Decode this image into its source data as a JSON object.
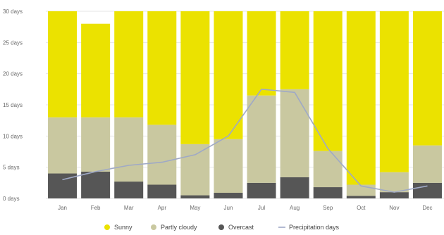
{
  "chart_data": {
    "type": "bar",
    "stacked": true,
    "categories": [
      "Jan",
      "Feb",
      "Mar",
      "Apr",
      "May",
      "Jun",
      "Jul",
      "Aug",
      "Sep",
      "Oct",
      "Nov",
      "Dec"
    ],
    "series": [
      {
        "name": "Overcast",
        "color": "#565656",
        "values": [
          4,
          4.3,
          2.7,
          2.2,
          0.5,
          0.9,
          2.5,
          3.4,
          1.8,
          0.4,
          1,
          2.5
        ]
      },
      {
        "name": "Partly cloudy",
        "color": "#c9c8a0",
        "values": [
          9,
          8.7,
          10.3,
          9.6,
          8.2,
          8.6,
          14,
          14.1,
          5.8,
          1.8,
          3.2,
          6
        ]
      },
      {
        "name": "Sunny",
        "color": "#ebe200",
        "values": [
          17,
          15,
          17,
          18.2,
          21.3,
          20.5,
          13.5,
          12.5,
          22.4,
          27.8,
          25.8,
          21.5
        ]
      }
    ],
    "line_series": {
      "name": "Precipitation days",
      "color": "#9fa9c6",
      "values": [
        3,
        4.3,
        5.3,
        5.8,
        7,
        10,
        17.5,
        17,
        8,
        2,
        1,
        2
      ]
    },
    "ylim": [
      0,
      30
    ],
    "yticks": [
      0,
      5,
      10,
      15,
      20,
      25,
      30
    ],
    "ytick_labels": [
      "0 days",
      "5 days",
      "10 days",
      "15 days",
      "20 days",
      "25 days",
      "30 days"
    ],
    "grid": true,
    "legend_position": "bottom",
    "title": "",
    "xlabel": "",
    "ylabel": ""
  },
  "legend": [
    {
      "label": "Sunny",
      "color": "#ebe200",
      "shape": "dot"
    },
    {
      "label": "Partly cloudy",
      "color": "#c9c8a0",
      "shape": "dot"
    },
    {
      "label": "Overcast",
      "color": "#565656",
      "shape": "dot"
    },
    {
      "label": "Precipitation days",
      "color": "#9fa9c6",
      "shape": "line"
    }
  ]
}
